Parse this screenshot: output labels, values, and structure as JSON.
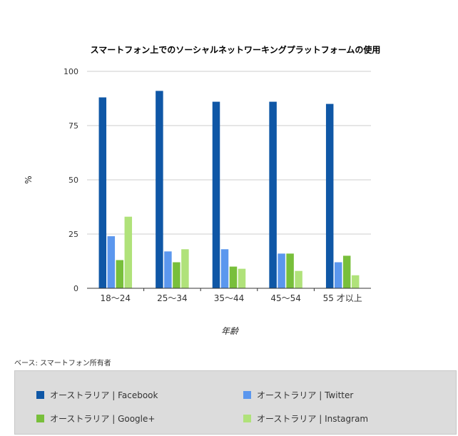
{
  "chart_data": {
    "type": "bar",
    "title": "スマートフォン上でのソーシャルネットワーキングプラットフォームの使用",
    "xlabel": "年齢",
    "ylabel": "%",
    "ylim": [
      0,
      100
    ],
    "yticks": [
      0,
      25,
      50,
      75,
      100
    ],
    "grid": true,
    "legend_position": "bottom",
    "categories": [
      "18〜24",
      "25〜34",
      "35〜44",
      "45〜54",
      "55 才以上"
    ],
    "series": [
      {
        "name": "オーストラリア | Facebook",
        "color": "#0f57a6",
        "values": [
          88,
          91,
          86,
          86,
          85
        ]
      },
      {
        "name": "オーストラリア | Twitter",
        "color": "#5b97ee",
        "values": [
          24,
          17,
          18,
          16,
          12
        ]
      },
      {
        "name": "オーストラリア | Google+",
        "color": "#78bf3b",
        "values": [
          13,
          12,
          10,
          16,
          15
        ]
      },
      {
        "name": "オーストラリア | Instagram",
        "color": "#b0e27a",
        "values": [
          33,
          18,
          9,
          8,
          6
        ]
      }
    ]
  },
  "footnote": "ベース: スマートフォン所有者"
}
